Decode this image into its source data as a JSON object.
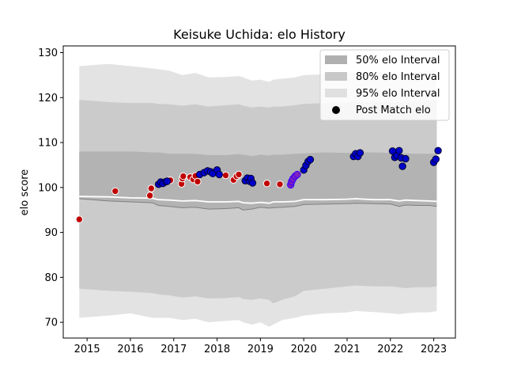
{
  "chart_data": {
    "type": "scatter",
    "title": "Keisuke Uchida: elo History",
    "xlabel": "",
    "ylabel": "elo score",
    "xlim": [
      2014.45,
      2023.5
    ],
    "ylim": [
      66.5,
      131.5
    ],
    "x_ticks": [
      2015,
      2016,
      2017,
      2018,
      2019,
      2020,
      2021,
      2022,
      2023
    ],
    "y_ticks": [
      70,
      80,
      90,
      100,
      110,
      120,
      130
    ],
    "grid": false,
    "legend_position": "top-right",
    "legend": [
      {
        "label": "50% elo Interval",
        "color": "#b0b0b0"
      },
      {
        "label": "80% elo Interval",
        "color": "#c8c8c8"
      },
      {
        "label": "95% elo Interval",
        "color": "#e0e0e0"
      },
      {
        "label": "Post Match elo",
        "color": "#000000"
      }
    ],
    "intervals": {
      "x": [
        2014.82,
        2015.5,
        2016.0,
        2016.5,
        2016.65,
        2016.9,
        2017.2,
        2017.5,
        2017.8,
        2018.2,
        2018.5,
        2018.6,
        2018.8,
        2019.0,
        2019.2,
        2019.3,
        2019.5,
        2019.8,
        2020.0,
        2020.5,
        2021.0,
        2021.2,
        2021.6,
        2022.0,
        2022.2,
        2022.35,
        2022.6,
        2022.9,
        2023.07
      ],
      "mean": [
        98.0,
        97.9,
        97.7,
        97.6,
        97.3,
        97.2,
        97.0,
        97.1,
        96.8,
        96.8,
        96.9,
        96.6,
        96.5,
        96.7,
        96.5,
        96.8,
        96.8,
        96.9,
        97.3,
        97.3,
        97.4,
        97.5,
        97.3,
        97.3,
        97.0,
        97.2,
        97.1,
        97.0,
        96.9
      ],
      "p50": [
        [
          97.5,
          108.0
        ],
        [
          97.0,
          108.0
        ],
        [
          96.8,
          108.0
        ],
        [
          96.6,
          107.8
        ],
        [
          96.0,
          107.8
        ],
        [
          95.8,
          107.5
        ],
        [
          95.5,
          107.5
        ],
        [
          95.6,
          107.5
        ],
        [
          95.2,
          107.2
        ],
        [
          95.3,
          107.2
        ],
        [
          95.5,
          107.4
        ],
        [
          95.0,
          107.3
        ],
        [
          95.2,
          107.0
        ],
        [
          95.6,
          107.3
        ],
        [
          95.4,
          107.1
        ],
        [
          95.5,
          107.3
        ],
        [
          95.6,
          107.3
        ],
        [
          95.8,
          107.5
        ],
        [
          96.2,
          107.6
        ],
        [
          96.3,
          107.8
        ],
        [
          96.4,
          107.7
        ],
        [
          96.5,
          107.8
        ],
        [
          96.4,
          107.8
        ],
        [
          96.3,
          107.7
        ],
        [
          95.8,
          107.6
        ],
        [
          96.1,
          107.6
        ],
        [
          96.0,
          107.5
        ],
        [
          96.0,
          107.5
        ],
        [
          95.8,
          107.5
        ]
      ],
      "p80": [
        [
          77.5,
          119.5
        ],
        [
          77.0,
          119.0
        ],
        [
          76.8,
          118.8
        ],
        [
          76.5,
          118.8
        ],
        [
          76.2,
          118.6
        ],
        [
          76.0,
          118.5
        ],
        [
          75.5,
          118.2
        ],
        [
          75.8,
          118.5
        ],
        [
          75.3,
          118.0
        ],
        [
          75.4,
          118.3
        ],
        [
          75.6,
          118.5
        ],
        [
          75.2,
          118.2
        ],
        [
          75.0,
          117.8
        ],
        [
          75.3,
          118.0
        ],
        [
          75.0,
          117.8
        ],
        [
          74.2,
          118.0
        ],
        [
          75.0,
          118.0
        ],
        [
          75.8,
          118.3
        ],
        [
          77.0,
          118.6
        ],
        [
          77.5,
          118.8
        ],
        [
          78.0,
          118.9
        ],
        [
          78.2,
          119.0
        ],
        [
          78.0,
          119.0
        ],
        [
          78.0,
          119.0
        ],
        [
          77.8,
          118.9
        ],
        [
          77.6,
          118.8
        ],
        [
          77.8,
          119.2
        ],
        [
          77.8,
          119.4
        ],
        [
          78.0,
          119.5
        ]
      ],
      "p95": [
        [
          71.0,
          127.0
        ],
        [
          71.5,
          127.5
        ],
        [
          72.0,
          127.0
        ],
        [
          71.0,
          126.5
        ],
        [
          71.0,
          126.3
        ],
        [
          71.0,
          126.0
        ],
        [
          70.5,
          125.0
        ],
        [
          70.8,
          125.5
        ],
        [
          70.0,
          124.5
        ],
        [
          70.3,
          124.6
        ],
        [
          70.5,
          124.8
        ],
        [
          70.0,
          124.5
        ],
        [
          69.5,
          123.8
        ],
        [
          70.0,
          124.0
        ],
        [
          69.0,
          123.5
        ],
        [
          69.5,
          124.0
        ],
        [
          70.5,
          124.2
        ],
        [
          71.0,
          124.5
        ],
        [
          71.5,
          125.0
        ],
        [
          72.0,
          125.2
        ],
        [
          72.2,
          125.5
        ],
        [
          72.5,
          125.6
        ],
        [
          72.3,
          125.6
        ],
        [
          72.0,
          125.5
        ],
        [
          71.8,
          125.2
        ],
        [
          72.0,
          125.4
        ],
        [
          72.2,
          125.7
        ],
        [
          72.2,
          126.0
        ],
        [
          72.5,
          126.2
        ]
      ]
    },
    "series": [
      {
        "marker_fill": "#c00000",
        "marker_edge": "#ffffff",
        "points": [
          [
            2014.82,
            92.9
          ],
          [
            2015.65,
            99.2
          ],
          [
            2016.45,
            98.2
          ],
          [
            2016.48,
            99.8
          ],
          [
            2016.92,
            101.6
          ],
          [
            2017.18,
            100.8
          ],
          [
            2017.2,
            102.0
          ],
          [
            2017.22,
            102.5
          ],
          [
            2017.38,
            102.3
          ],
          [
            2017.45,
            101.8
          ],
          [
            2017.5,
            102.6
          ],
          [
            2017.55,
            101.3
          ],
          [
            2018.2,
            102.7
          ],
          [
            2018.38,
            101.7
          ],
          [
            2018.45,
            102.5
          ],
          [
            2018.5,
            102.9
          ],
          [
            2019.15,
            100.9
          ],
          [
            2019.45,
            100.7
          ]
        ]
      },
      {
        "marker_fill": "#0000cc",
        "marker_edge": "#000033",
        "points": [
          [
            2016.65,
            100.7
          ],
          [
            2016.7,
            101.2
          ],
          [
            2016.75,
            100.9
          ],
          [
            2016.82,
            101.3
          ],
          [
            2016.85,
            101.4
          ],
          [
            2017.6,
            102.9
          ],
          [
            2017.7,
            103.3
          ],
          [
            2017.78,
            103.7
          ],
          [
            2017.85,
            103.5
          ],
          [
            2017.9,
            103.1
          ],
          [
            2018.0,
            103.9
          ],
          [
            2018.05,
            102.9
          ],
          [
            2018.65,
            101.5
          ],
          [
            2018.7,
            102.1
          ],
          [
            2018.75,
            101.4
          ],
          [
            2018.78,
            102.0
          ],
          [
            2018.82,
            101.0
          ],
          [
            2020.0,
            103.9
          ],
          [
            2020.05,
            104.9
          ],
          [
            2020.1,
            105.8
          ],
          [
            2020.15,
            106.2
          ],
          [
            2021.15,
            106.9
          ],
          [
            2021.2,
            107.5
          ],
          [
            2021.25,
            106.9
          ],
          [
            2021.3,
            107.7
          ],
          [
            2022.05,
            108.1
          ],
          [
            2022.1,
            106.7
          ],
          [
            2022.15,
            107.1
          ],
          [
            2022.2,
            108.2
          ],
          [
            2022.25,
            106.6
          ],
          [
            2022.28,
            104.7
          ],
          [
            2022.35,
            106.4
          ],
          [
            2023.0,
            105.6
          ],
          [
            2023.05,
            106.3
          ],
          [
            2023.1,
            108.2
          ]
        ]
      },
      {
        "marker_fill": "#8020c0",
        "marker_edge": "#3000ff",
        "points": [
          [
            2019.7,
            100.6
          ],
          [
            2019.72,
            101.3
          ],
          [
            2019.75,
            101.9
          ],
          [
            2019.8,
            102.5
          ],
          [
            2019.85,
            102.9
          ]
        ]
      }
    ]
  }
}
